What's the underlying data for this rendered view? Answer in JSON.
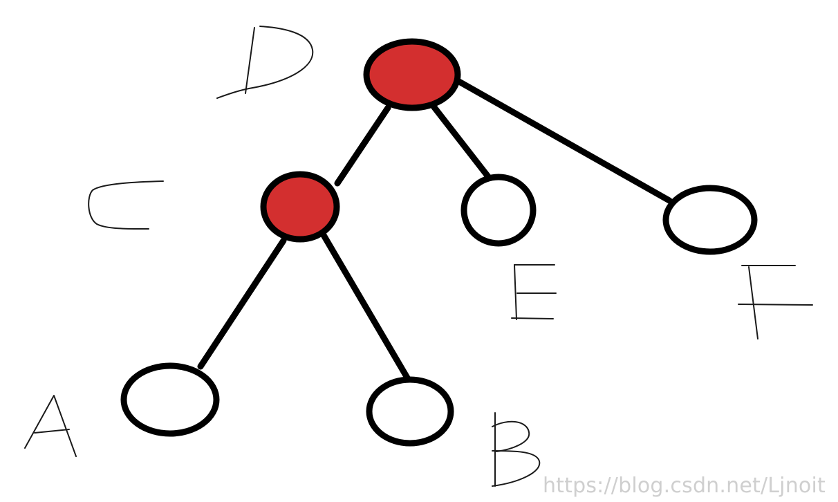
{
  "diagram": {
    "type": "tree",
    "nodes": [
      {
        "id": "D",
        "label": "D",
        "fill": "#d32f2f",
        "highlighted": true
      },
      {
        "id": "C",
        "label": "C",
        "fill": "#d32f2f",
        "highlighted": true
      },
      {
        "id": "E",
        "label": "E",
        "fill": "#ffffff",
        "highlighted": false
      },
      {
        "id": "F",
        "label": "F",
        "fill": "#ffffff",
        "highlighted": false
      },
      {
        "id": "A",
        "label": "A",
        "fill": "#ffffff",
        "highlighted": false
      },
      {
        "id": "B",
        "label": "B",
        "fill": "#ffffff",
        "highlighted": false
      }
    ],
    "edges": [
      {
        "from": "D",
        "to": "C"
      },
      {
        "from": "D",
        "to": "E"
      },
      {
        "from": "D",
        "to": "F"
      },
      {
        "from": "C",
        "to": "A"
      },
      {
        "from": "C",
        "to": "B"
      }
    ]
  },
  "colors": {
    "highlight": "#d32f2f",
    "stroke": "#000000",
    "background": "#ffffff",
    "watermark": "#cfcfcf"
  },
  "watermark": "https://blog.csdn.net/Ljnoit"
}
